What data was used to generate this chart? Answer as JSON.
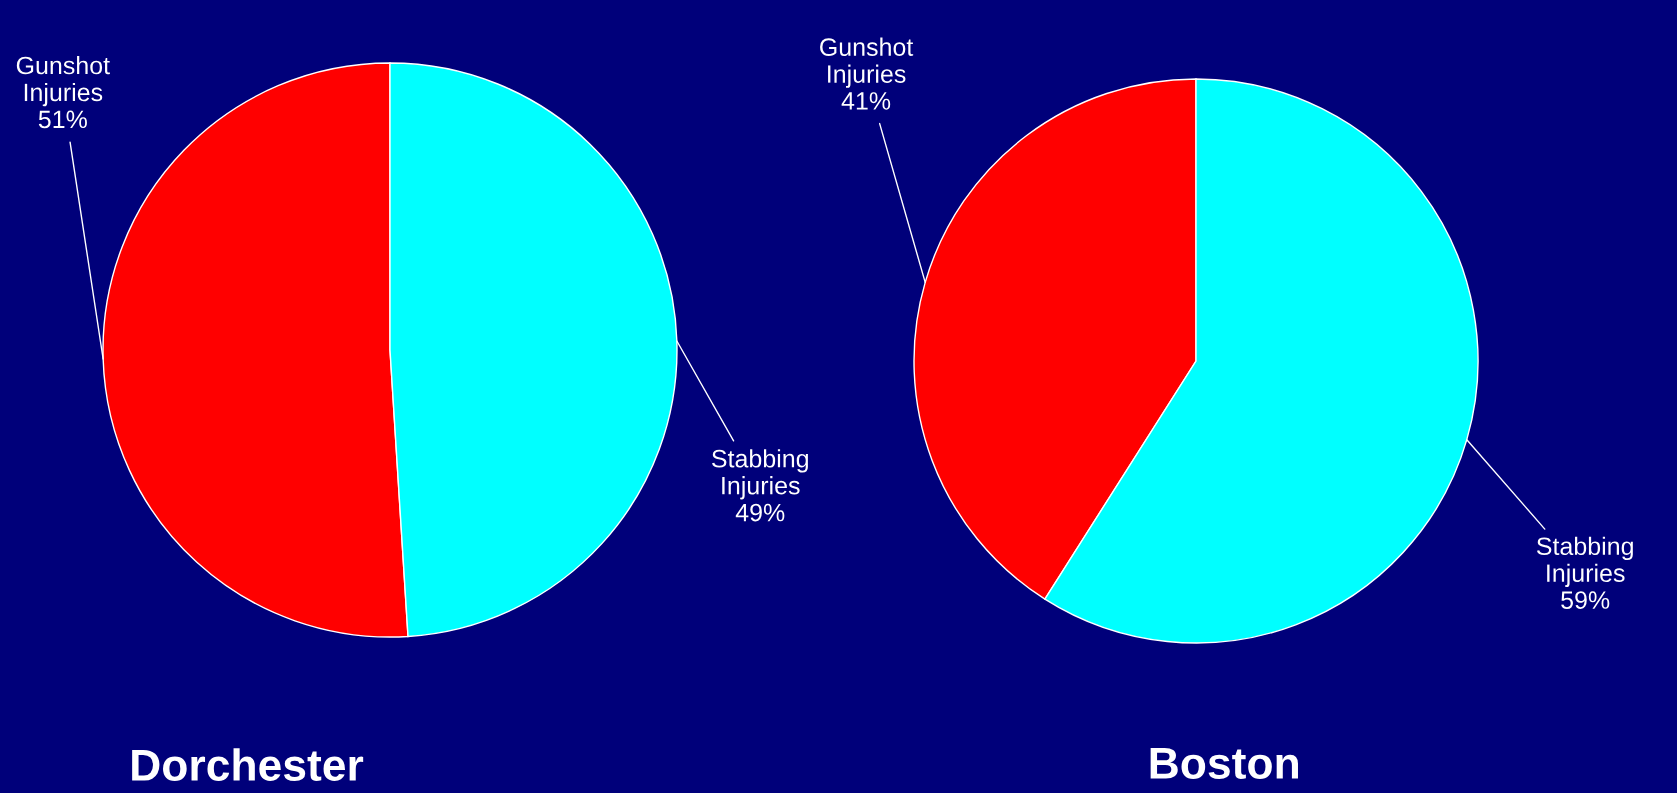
{
  "chart_data": [
    {
      "type": "pie",
      "title": "Dorchester",
      "categories": [
        "Gunshot Injuries",
        "Stabbing Injuries"
      ],
      "values": [
        51,
        49
      ],
      "value_labels": [
        "51%",
        "49%"
      ],
      "colors": [
        "#ff0000",
        "#00ffff"
      ]
    },
    {
      "type": "pie",
      "title": "Boston",
      "categories": [
        "Gunshot Injuries",
        "Stabbing Injuries"
      ],
      "values": [
        41,
        59
      ],
      "value_labels": [
        "41%",
        "59%"
      ],
      "colors": [
        "#ff0000",
        "#00ffff"
      ]
    }
  ]
}
